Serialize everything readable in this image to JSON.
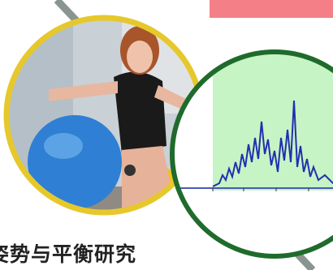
{
  "caption": "姿势与平衡研究"
}
